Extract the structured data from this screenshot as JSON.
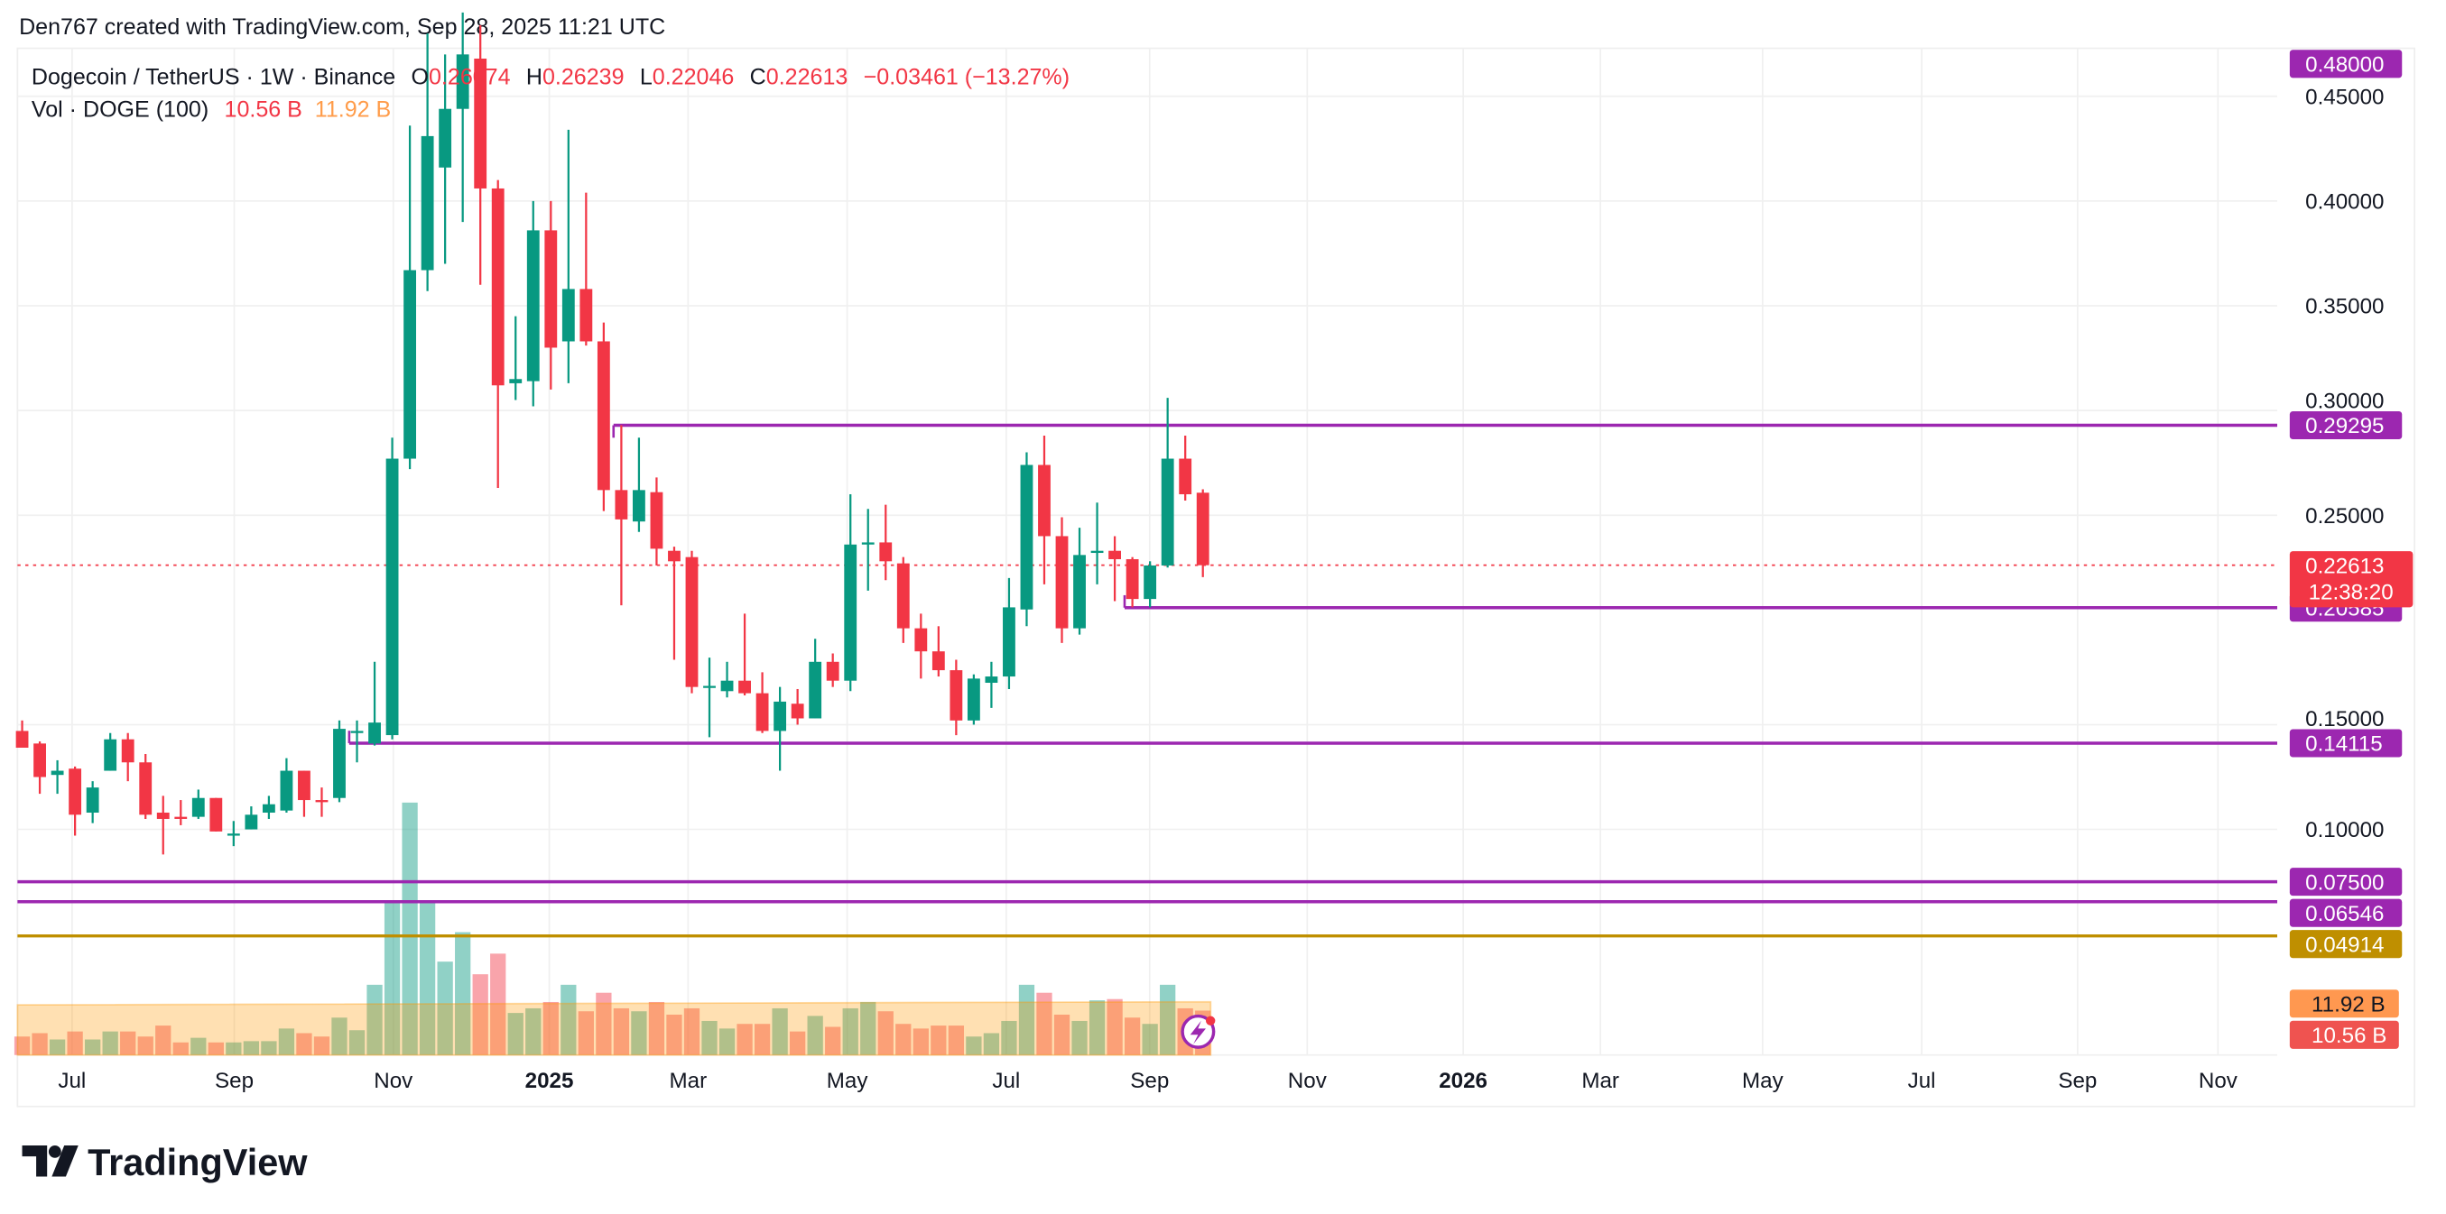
{
  "attribution": "Den767 created with TradingView.com, Sep 28, 2025 11:21 UTC",
  "legend": {
    "symbol": "Dogecoin / TetherUS · 1W · Binance",
    "o_label": "O",
    "o": "0.26074",
    "h_label": "H",
    "h": "0.26239",
    "l_label": "L",
    "l": "0.22046",
    "c_label": "C",
    "c": "0.22613",
    "change": "−0.03461 (−13.27%)",
    "vol_label": "Vol · DOGE (100)",
    "vol_value": "10.56 B",
    "vol_ma": "11.92 B"
  },
  "price_axis": {
    "ticks": [
      "0.45000",
      "0.40000",
      "0.35000",
      "0.30000",
      "0.25000",
      "0.15000",
      "0.10000"
    ],
    "tags": [
      {
        "label": "0.48000",
        "price": 0.48,
        "color": "#9c27b0"
      },
      {
        "label": "0.29295",
        "price": 0.29295,
        "color": "#9c27b0"
      },
      {
        "label": "0.20585",
        "price": 0.20585,
        "color": "#9c27b0"
      },
      {
        "label": "0.14115",
        "price": 0.14115,
        "color": "#9c27b0"
      },
      {
        "label": "0.07500",
        "price": 0.075,
        "color": "#9c27b0"
      },
      {
        "label": "0.06546",
        "price": 0.06546,
        "color": "#9c27b0"
      },
      {
        "label": "0.04914",
        "price": 0.04914,
        "color": "#bf8f00"
      }
    ],
    "last_price": "0.22613",
    "countdown": "12:38:20",
    "vol_ma_tag": "11.92 B",
    "vol_tag": "10.56 B"
  },
  "time_axis": [
    "Jul",
    "Sep",
    "Nov",
    "2025",
    "Mar",
    "May",
    "Jul",
    "Sep",
    "Nov",
    "2026",
    "Mar",
    "May",
    "Jul",
    "Sep",
    "Nov"
  ],
  "brand": "TradingView",
  "colors": {
    "up": "#089981",
    "down": "#f23645",
    "level": "#9c27b0",
    "gold": "#bf8f00"
  },
  "chart_data": {
    "type": "candlestick",
    "title": "Dogecoin / TetherUS · 1W · Binance",
    "ylim": [
      0.0,
      0.48
    ],
    "levels": [
      {
        "price": 0.29295,
        "start_index": 34
      },
      {
        "price": 0.20585,
        "start_index": 63
      },
      {
        "price": 0.14115,
        "start_index": 19
      },
      {
        "price": 0.075,
        "start_index": 0
      },
      {
        "price": 0.06546,
        "start_index": 0
      },
      {
        "price": 0.04914,
        "start_index": 0
      }
    ],
    "ohlc": [
      [
        0.147,
        0.152,
        0.14,
        0.139
      ],
      [
        0.141,
        0.142,
        0.117,
        0.125
      ],
      [
        0.126,
        0.133,
        0.117,
        0.128
      ],
      [
        0.129,
        0.13,
        0.097,
        0.107
      ],
      [
        0.108,
        0.123,
        0.103,
        0.12
      ],
      [
        0.128,
        0.146,
        0.128,
        0.143
      ],
      [
        0.143,
        0.146,
        0.123,
        0.132
      ],
      [
        0.132,
        0.136,
        0.105,
        0.107
      ],
      [
        0.108,
        0.116,
        0.088,
        0.105
      ],
      [
        0.106,
        0.114,
        0.102,
        0.105
      ],
      [
        0.106,
        0.119,
        0.105,
        0.115
      ],
      [
        0.115,
        0.115,
        0.099,
        0.099
      ],
      [
        0.097,
        0.104,
        0.092,
        0.098
      ],
      [
        0.1,
        0.111,
        0.1,
        0.107
      ],
      [
        0.108,
        0.116,
        0.105,
        0.112
      ],
      [
        0.109,
        0.134,
        0.108,
        0.128
      ],
      [
        0.128,
        0.128,
        0.106,
        0.114
      ],
      [
        0.114,
        0.12,
        0.106,
        0.113
      ],
      [
        0.115,
        0.152,
        0.113,
        0.148
      ],
      [
        0.146,
        0.152,
        0.132,
        0.147
      ],
      [
        0.141,
        0.18,
        0.14,
        0.151
      ],
      [
        0.145,
        0.287,
        0.143,
        0.277
      ],
      [
        0.277,
        0.436,
        0.272,
        0.367
      ],
      [
        0.367,
        0.48,
        0.357,
        0.431
      ],
      [
        0.416,
        0.47,
        0.37,
        0.444
      ],
      [
        0.444,
        0.49,
        0.39,
        0.47
      ],
      [
        0.468,
        0.484,
        0.36,
        0.406
      ],
      [
        0.406,
        0.41,
        0.263,
        0.312
      ],
      [
        0.313,
        0.345,
        0.305,
        0.315
      ],
      [
        0.314,
        0.4,
        0.302,
        0.386
      ],
      [
        0.386,
        0.4,
        0.31,
        0.33
      ],
      [
        0.333,
        0.434,
        0.313,
        0.358
      ],
      [
        0.358,
        0.404,
        0.331,
        0.333
      ],
      [
        0.333,
        0.342,
        0.252,
        0.262
      ],
      [
        0.262,
        0.293,
        0.207,
        0.248
      ],
      [
        0.247,
        0.287,
        0.242,
        0.262
      ],
      [
        0.261,
        0.268,
        0.226,
        0.234
      ],
      [
        0.233,
        0.235,
        0.181,
        0.228
      ],
      [
        0.23,
        0.233,
        0.165,
        0.168
      ],
      [
        0.168,
        0.182,
        0.144,
        0.1685
      ],
      [
        0.166,
        0.18,
        0.163,
        0.171
      ],
      [
        0.171,
        0.203,
        0.164,
        0.165
      ],
      [
        0.165,
        0.175,
        0.146,
        0.147
      ],
      [
        0.147,
        0.168,
        0.128,
        0.161
      ],
      [
        0.16,
        0.167,
        0.15,
        0.153
      ],
      [
        0.153,
        0.191,
        0.153,
        0.18
      ],
      [
        0.18,
        0.184,
        0.168,
        0.171
      ],
      [
        0.171,
        0.26,
        0.166,
        0.236
      ],
      [
        0.236,
        0.253,
        0.214,
        0.237
      ],
      [
        0.237,
        0.255,
        0.219,
        0.228
      ],
      [
        0.227,
        0.23,
        0.189,
        0.196
      ],
      [
        0.196,
        0.203,
        0.172,
        0.185
      ],
      [
        0.185,
        0.197,
        0.173,
        0.176
      ],
      [
        0.176,
        0.181,
        0.145,
        0.152
      ],
      [
        0.152,
        0.174,
        0.15,
        0.172
      ],
      [
        0.17,
        0.18,
        0.158,
        0.173
      ],
      [
        0.173,
        0.22,
        0.167,
        0.206
      ],
      [
        0.205,
        0.28,
        0.197,
        0.274
      ],
      [
        0.274,
        0.288,
        0.217,
        0.24
      ],
      [
        0.24,
        0.249,
        0.189,
        0.196
      ],
      [
        0.196,
        0.244,
        0.193,
        0.231
      ],
      [
        0.232,
        0.256,
        0.217,
        0.233
      ],
      [
        0.233,
        0.24,
        0.209,
        0.229
      ],
      [
        0.229,
        0.23,
        0.206,
        0.21
      ],
      [
        0.21,
        0.228,
        0.206,
        0.226
      ],
      [
        0.226,
        0.306,
        0.225,
        0.277
      ],
      [
        0.277,
        0.288,
        0.257,
        0.26
      ],
      [
        0.26074,
        0.26239,
        0.22046,
        0.22613
      ]
    ],
    "volume_b": [
      4.4,
      5.2,
      3.7,
      5.6,
      3.7,
      5.6,
      5.6,
      4.4,
      7.0,
      3.0,
      4.1,
      3.0,
      3.0,
      3.3,
      3.3,
      6.3,
      5.2,
      4.4,
      8.9,
      5.9,
      16.7,
      36.6,
      60.0,
      36.6,
      22.2,
      29.2,
      19.2,
      24.1,
      10.0,
      11.1,
      12.6,
      16.7,
      10.4,
      14.8,
      11.1,
      10.4,
      12.6,
      9.6,
      11.1,
      8.1,
      6.3,
      7.4,
      7.4,
      11.1,
      5.6,
      9.3,
      6.7,
      11.1,
      12.6,
      10.4,
      7.4,
      6.3,
      7.0,
      7.0,
      4.4,
      5.2,
      8.1,
      16.7,
      14.8,
      9.6,
      8.1,
      13.0,
      13.3,
      8.9,
      7.4,
      16.7,
      11.1,
      10.56
    ],
    "volume_ma_b": 11.92
  }
}
